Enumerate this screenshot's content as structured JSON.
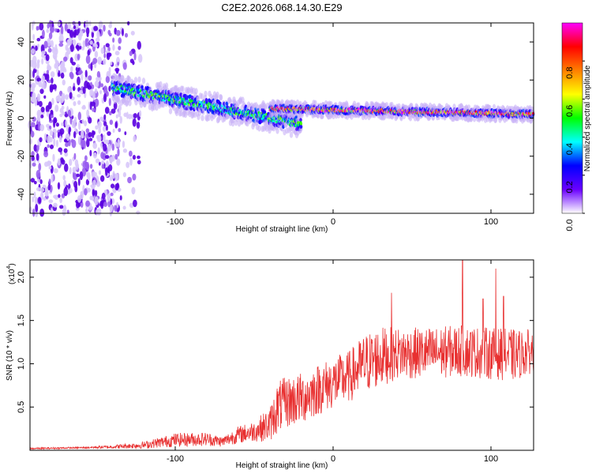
{
  "title": "C2E2.2026.068.14.30.E29",
  "chart_data": [
    {
      "type": "heatmap",
      "xlabel": "Height of straight line (km)",
      "ylabel": "Frequency (Hz)",
      "xlim": [
        -192,
        127
      ],
      "ylim": [
        -50,
        50
      ],
      "xticks": [
        -100,
        0,
        100
      ],
      "yticks": [
        -40,
        -20,
        0,
        20,
        40
      ],
      "colorbar": {
        "label": "Normalized spectral amplitude",
        "range": [
          0,
          1
        ],
        "ticks": [
          "0.0",
          "0.2",
          "0.4",
          "0.6",
          "0.8"
        ],
        "colormap": [
          "#ffffff",
          "#6a00ff",
          "#0000ff",
          "#00ffff",
          "#00ff00",
          "#ffff00",
          "#ff7f00",
          "#ff0000",
          "#ff00ff"
        ]
      },
      "regions": [
        {
          "name": "noise",
          "x": [
            -192,
            -122
          ],
          "freq_range": [
            -50,
            50
          ],
          "amplitude": 0.15
        },
        {
          "name": "signal-track",
          "x": [
            -140,
            -20
          ],
          "freq_start": 16,
          "freq_end": -3,
          "amplitude": 0.45
        },
        {
          "name": "signal-track",
          "x": [
            -40,
            127
          ],
          "freq_start": 5,
          "freq_end": 2,
          "amplitude": 0.85
        }
      ]
    },
    {
      "type": "line",
      "xlabel": "Height of straight line (km)",
      "ylabel": "SNR (10 * v/v)",
      "y_multiplier_label": "(x10",
      "y_multiplier_exp": "4",
      "xlim": [
        -192,
        127
      ],
      "ylim": [
        0,
        2.2
      ],
      "xticks": [
        -100,
        0,
        100
      ],
      "yticks": [
        0.5,
        1.0,
        1.5,
        2.0
      ],
      "yticklabels": [
        "0.5",
        "1.0",
        "1.5",
        "2.0"
      ],
      "color": "#e83030",
      "envelope": {
        "x": [
          -192,
          -160,
          -140,
          -120,
          -100,
          -80,
          -70,
          -60,
          -50,
          -40,
          -35,
          -30,
          -20,
          -10,
          0,
          10,
          20,
          30,
          40,
          60,
          80,
          100,
          115,
          127
        ],
        "mean": [
          0.02,
          0.03,
          0.04,
          0.06,
          0.12,
          0.13,
          0.1,
          0.18,
          0.22,
          0.3,
          0.5,
          0.55,
          0.6,
          0.7,
          0.78,
          0.85,
          1.0,
          1.08,
          1.12,
          1.12,
          1.15,
          1.12,
          1.1,
          1.15
        ],
        "amp": [
          0.01,
          0.01,
          0.02,
          0.04,
          0.08,
          0.08,
          0.06,
          0.1,
          0.12,
          0.2,
          0.3,
          0.3,
          0.3,
          0.3,
          0.3,
          0.3,
          0.35,
          0.35,
          0.3,
          0.3,
          0.3,
          0.3,
          0.3,
          0.25
        ]
      },
      "peaks": [
        {
          "x": 82,
          "y": 2.2
        },
        {
          "x": 103,
          "y": 2.1
        },
        {
          "x": 37,
          "y": 1.82
        },
        {
          "x": 108,
          "y": 1.78
        },
        {
          "x": 95,
          "y": 1.75
        }
      ]
    }
  ]
}
